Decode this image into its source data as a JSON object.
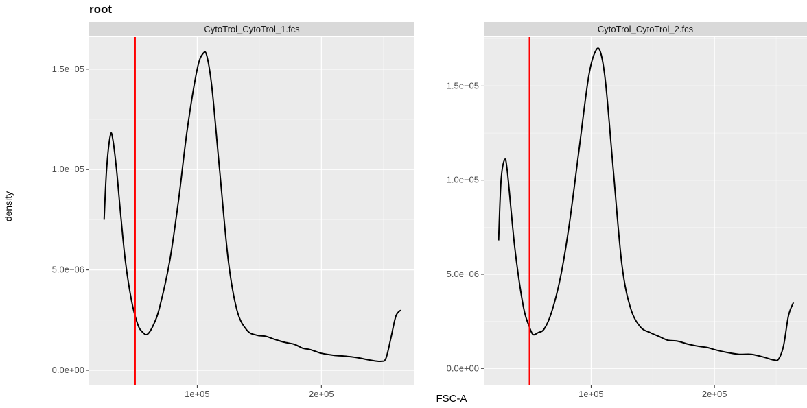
{
  "title": "root",
  "xlabel": "FSC-A",
  "ylabel": "density",
  "colors": {
    "panel_bg": "#EBEBEB",
    "strip_bg": "#D9D9D9",
    "grid_major": "#FFFFFF",
    "curve": "#000000",
    "gate_line": "#FF0000",
    "tick_text": "#4D4D4D"
  },
  "chart_data": [
    {
      "type": "line",
      "facet": "CytoTrol_CytoTrol_1.fcs",
      "xlim": [
        13000,
        275000
      ],
      "ylim": [
        -7.5e-07,
        1.66e-05
      ],
      "x_ticks": [
        100000,
        200000
      ],
      "x_tick_labels": [
        "1e+05",
        "2e+05"
      ],
      "y_ticks": [
        0,
        5e-06,
        1e-05,
        1.5e-05
      ],
      "y_tick_labels": [
        "0.0e+00",
        "5.0e−06",
        "1.0e−05",
        "1.5e−05"
      ],
      "gate_x": 50000,
      "grid": true,
      "series": [
        {
          "x": [
            25000,
            27000,
            30000,
            32000,
            35000,
            38000,
            42000,
            47000,
            52000,
            56000,
            60000,
            65000,
            70000,
            78000,
            85000,
            92000,
            100000,
            105000,
            108000,
            112000,
            118000,
            125000,
            132000,
            140000,
            148000,
            155000,
            162000,
            170000,
            178000,
            185000,
            190000,
            195000,
            200000,
            210000,
            220000,
            230000,
            240000,
            248000,
            252000,
            256000,
            260000,
            264000
          ],
          "y": [
            7.5e-06,
            1e-05,
            1.17e-05,
            1.15e-05,
            1e-05,
            8e-06,
            5.5e-06,
            3.5e-06,
            2.3e-06,
            1.9e-06,
            1.8e-06,
            2.3e-06,
            3.2e-06,
            5.5e-06,
            8.5e-06,
            1.2e-05,
            1.5e-05,
            1.58e-05,
            1.56e-05,
            1.4e-05,
            1e-05,
            5.5e-06,
            3e-06,
            2e-06,
            1.75e-06,
            1.7e-06,
            1.55e-06,
            1.4e-06,
            1.3e-06,
            1.1e-06,
            1.05e-06,
            9.5e-07,
            8.5e-07,
            7.5e-07,
            7e-07,
            6.2e-07,
            5e-07,
            4.5e-07,
            6e-07,
            1.6e-06,
            2.7e-06,
            3e-06
          ]
        }
      ]
    },
    {
      "type": "line",
      "facet": "CytoTrol_CytoTrol_2.fcs",
      "xlim": [
        13000,
        275000
      ],
      "ylim": [
        -9e-07,
        1.76e-05
      ],
      "x_ticks": [
        100000,
        200000
      ],
      "x_tick_labels": [
        "1e+05",
        "2e+05"
      ],
      "y_ticks": [
        0,
        5e-06,
        1e-05,
        1.5e-05
      ],
      "y_tick_labels": [
        "0.0e+00",
        "5.0e−06",
        "1.0e−05",
        "1.5e−05"
      ],
      "gate_x": 50000,
      "grid": true,
      "series": [
        {
          "x": [
            25000,
            27000,
            30000,
            32000,
            35000,
            38000,
            42000,
            46000,
            50000,
            53000,
            57000,
            62000,
            68000,
            75000,
            82000,
            90000,
            98000,
            104000,
            108000,
            112000,
            118000,
            125000,
            132000,
            140000,
            148000,
            155000,
            162000,
            170000,
            178000,
            185000,
            190000,
            195000,
            200000,
            210000,
            220000,
            230000,
            240000,
            248000,
            252000,
            256000,
            260000,
            264000
          ],
          "y": [
            6.8e-06,
            1e-05,
            1.11e-05,
            1.05e-05,
            8.5e-06,
            6.5e-06,
            4.5e-06,
            3e-06,
            2.2e-06,
            1.8e-06,
            1.9e-06,
            2.1e-06,
            3e-06,
            4.8e-06,
            7.5e-06,
            1.15e-05,
            1.55e-05,
            1.69e-05,
            1.67e-05,
            1.5e-05,
            1.05e-05,
            5.5e-06,
            3.2e-06,
            2.2e-06,
            1.9e-06,
            1.7e-06,
            1.5e-06,
            1.45e-06,
            1.3e-06,
            1.2e-06,
            1.15e-06,
            1.1e-06,
            1e-06,
            8.5e-07,
            7.5e-07,
            7.5e-07,
            6e-07,
            4.5e-07,
            5e-07,
            1.2e-06,
            2.8e-06,
            3.5e-06
          ]
        }
      ]
    }
  ]
}
